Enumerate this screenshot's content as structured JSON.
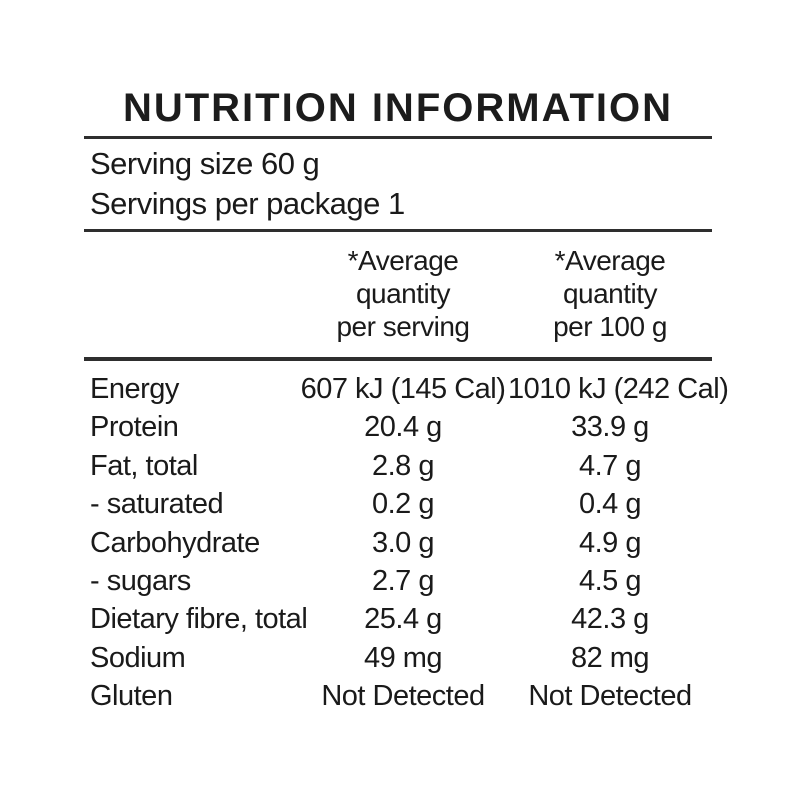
{
  "panel": {
    "title": "NUTRITION INFORMATION",
    "serving_lines": {
      "serving_size": "Serving size 60 g",
      "servings_per_package": "Servings per package 1"
    },
    "column_headers": {
      "per_serving": {
        "line1": "*Average",
        "line2": "quantity",
        "line3": "per serving"
      },
      "per_100g": {
        "line1": "*Average",
        "line2": "quantity",
        "line3": "per 100 g"
      }
    },
    "rows": [
      {
        "label": "Energy",
        "per_serving": "607 kJ (145 Cal)",
        "per_100g": "1010 kJ (242 Cal)"
      },
      {
        "label": "Protein",
        "per_serving": "20.4 g",
        "per_100g": "33.9 g"
      },
      {
        "label": "Fat, total",
        "per_serving": "2.8 g",
        "per_100g": "4.7 g"
      },
      {
        "label": "- saturated",
        "per_serving": "0.2 g",
        "per_100g": "0.4 g"
      },
      {
        "label": "Carbohydrate",
        "per_serving": "3.0 g",
        "per_100g": "4.9 g"
      },
      {
        "label": "- sugars",
        "per_serving": "2.7 g",
        "per_100g": "4.5 g"
      },
      {
        "label": "Dietary fibre, total",
        "per_serving": "25.4 g",
        "per_100g": "42.3 g"
      },
      {
        "label": "Sodium",
        "per_serving": "49 mg",
        "per_100g": "82 mg"
      },
      {
        "label": "Gluten",
        "per_serving": "Not Detected",
        "per_100g": "Not Detected"
      }
    ],
    "colors": {
      "text": "#1a1a1a",
      "rule": "#2e2e2e",
      "background": "#ffffff"
    }
  }
}
